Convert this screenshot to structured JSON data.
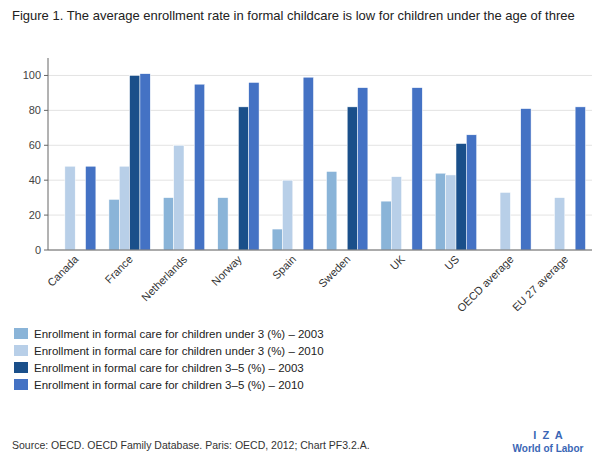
{
  "chart_data": {
    "type": "bar",
    "title": "Figure 1. The average enrollment rate in formal childcare is low for children under the age of three",
    "categories": [
      "Canada",
      "France",
      "Netherlands",
      "Norway",
      "Spain",
      "Sweden",
      "UK",
      "US",
      "OECD average",
      "EU 27 average"
    ],
    "series": [
      {
        "name": "Enrollment in formal care for children under 3 (%) – 2003",
        "color": "#8ab4d8",
        "values": [
          0,
          29,
          30,
          30,
          12,
          45,
          28,
          44,
          0,
          0
        ]
      },
      {
        "name": "Enrollment in formal care for children under 3 (%) – 2010",
        "color": "#b8cfe8",
        "values": [
          48,
          48,
          60,
          0,
          40,
          0,
          42,
          43,
          33,
          30
        ]
      },
      {
        "name": "Enrollment in formal care for children 3–5 (%) – 2003",
        "color": "#1a4f8a",
        "values": [
          0,
          100,
          0,
          82,
          0,
          82,
          0,
          61,
          0,
          0
        ]
      },
      {
        "name": "Enrollment in formal care for children 3–5 (%) – 2010",
        "color": "#4472c4",
        "values": [
          48,
          101,
          95,
          96,
          99,
          93,
          93,
          66,
          81,
          82
        ]
      }
    ],
    "ylim": [
      0,
      110
    ],
    "yticks": [
      0,
      20,
      40,
      60,
      80,
      100
    ],
    "grid": true,
    "annotations": [
      "Source: OECD. OECD Family Database. Paris: OECD, 2012; Chart PF3.2.A.",
      "I  Z  A",
      "World of Labor"
    ]
  }
}
